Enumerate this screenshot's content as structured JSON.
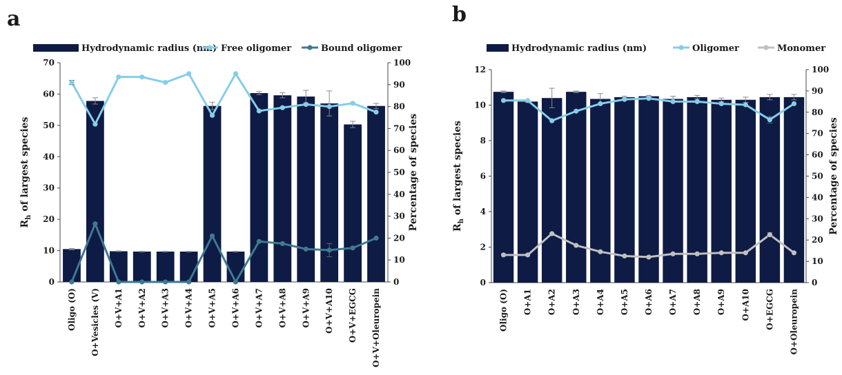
{
  "chart_data": [
    {
      "panel_label": "a",
      "type": "bar",
      "categories": [
        "Oligo (O)",
        "O+Vesicles (V)",
        "O+V+A1",
        "O+V+A2",
        "O+V+A3",
        "O+V+A4",
        "O+V+A5",
        "O+V+A6",
        "O+V+A7",
        "O+V+A8",
        "O+V+A9",
        "O+V+A10",
        "O+V+EGCG",
        "O+V+Oleuropein"
      ],
      "ylabel": "Rh of largest species",
      "ylabel_main": "R",
      "ylabel_sub": "h",
      "ylabel_rest": " of largest species",
      "y2label": "Percentage of species",
      "ylim": [
        0,
        70
      ],
      "yticks": [
        0,
        10,
        20,
        30,
        40,
        50,
        60,
        70
      ],
      "y2lim": [
        0,
        100
      ],
      "y2ticks": [
        0,
        10,
        20,
        30,
        40,
        50,
        60,
        70,
        80,
        90,
        100
      ],
      "legend_position": "top",
      "series": [
        {
          "name": "Hydrodynamic radius (nm)",
          "kind": "bar",
          "axis": "left",
          "color": "#0d1b45",
          "values": [
            10.5,
            57.8,
            9.8,
            9.7,
            9.7,
            9.7,
            56.2,
            9.7,
            60.3,
            59.6,
            59.2,
            57.0,
            50.3,
            56.2
          ],
          "errors": [
            0.2,
            1.0,
            0.1,
            0.1,
            0.1,
            0.1,
            1.2,
            0.1,
            0.5,
            0.8,
            2.0,
            4.0,
            1.0,
            0.8
          ]
        },
        {
          "name": "Free oligomer",
          "kind": "line",
          "axis": "right",
          "color": "#86cde8",
          "values": [
            91,
            72,
            93.5,
            93.5,
            91,
            95,
            76,
            95,
            78,
            79.5,
            81,
            80,
            81.5,
            77.5
          ],
          "errors": [
            1,
            0,
            0,
            0,
            0,
            0,
            0,
            0,
            0,
            0,
            0,
            0,
            0,
            0
          ]
        },
        {
          "name": "Bound oligomer",
          "kind": "line",
          "axis": "right",
          "color": "#3f7990",
          "values": [
            0,
            26.5,
            0,
            0,
            0,
            0,
            21,
            0,
            18.5,
            17.5,
            15,
            14.5,
            15.5,
            20
          ],
          "errors": [
            0,
            0,
            0,
            0,
            0,
            0,
            0,
            0,
            0,
            0,
            0,
            3,
            0,
            0
          ]
        }
      ]
    },
    {
      "panel_label": "b",
      "type": "bar",
      "categories": [
        "Oligo (O)",
        "O+A1",
        "O+A2",
        "O+A3",
        "O+A4",
        "O+A5",
        "O+A6",
        "O+A7",
        "O+A8",
        "O+A9",
        "O+A10",
        "O+EGCG",
        "O+Oleuropein"
      ],
      "ylabel": "Rh of largest species",
      "ylabel_main": "R",
      "ylabel_sub": "h",
      "ylabel_rest": " of largest species",
      "y2label": "Percentage of species",
      "ylim": [
        0,
        12
      ],
      "yticks": [
        0,
        2,
        4,
        6,
        8,
        10,
        12
      ],
      "y2lim": [
        0,
        100
      ],
      "y2ticks": [
        0,
        10,
        20,
        30,
        40,
        50,
        60,
        70,
        80,
        90,
        100
      ],
      "legend_position": "top",
      "series": [
        {
          "name": "Hydrodynamic radius (nm)",
          "kind": "bar",
          "axis": "left",
          "color": "#0d1b45",
          "values": [
            10.75,
            10.2,
            10.4,
            10.75,
            10.35,
            10.45,
            10.5,
            10.35,
            10.45,
            10.3,
            10.3,
            10.45,
            10.45
          ],
          "errors": [
            0.05,
            0.05,
            0.55,
            0.05,
            0.3,
            0.05,
            0.05,
            0.15,
            0.1,
            0.1,
            0.15,
            0.15,
            0.15
          ]
        },
        {
          "name": "Oligomer",
          "kind": "line",
          "axis": "right",
          "color": "#86cde8",
          "values": [
            85.5,
            85.5,
            76,
            80.5,
            84,
            86,
            86.5,
            85,
            85,
            84,
            83.5,
            76.5,
            84
          ],
          "errors": [
            0,
            0,
            0,
            0,
            0,
            0,
            0,
            0,
            0,
            0,
            0,
            1.5,
            0
          ]
        },
        {
          "name": "Monomer",
          "kind": "line",
          "axis": "right",
          "color": "#c0c0c0",
          "values": [
            13,
            13,
            23,
            17.5,
            14.5,
            12.5,
            12,
            13.5,
            13.5,
            14,
            14,
            22.5,
            14
          ],
          "errors": [
            0,
            0,
            0,
            0,
            0,
            0,
            0,
            0,
            0,
            0,
            0,
            1,
            0
          ]
        }
      ]
    }
  ]
}
